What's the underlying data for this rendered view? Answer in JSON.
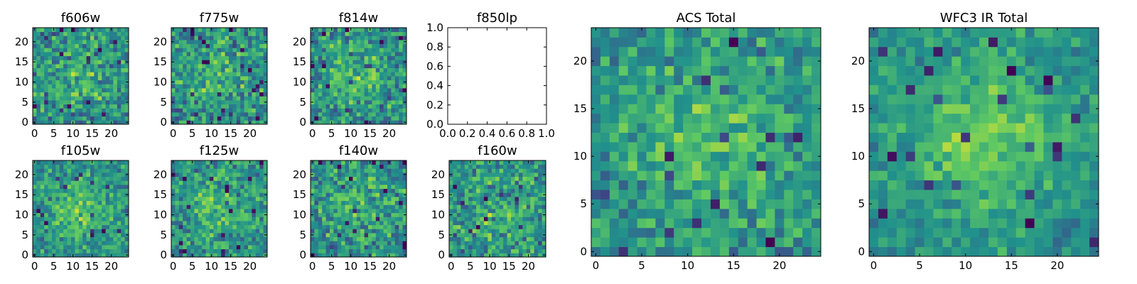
{
  "colormap": [
    "#440154",
    "#3b528b",
    "#21918c",
    "#5ec962",
    "#fde725"
  ],
  "chart_data": [
    {
      "type": "heatmap",
      "title": "f606w",
      "grid": [
        25,
        24
      ],
      "seed": 11,
      "blob": 0.45,
      "noise": 1.0,
      "xticks": [
        "0",
        "5",
        "10",
        "15",
        "20"
      ],
      "yticks": [
        "0",
        "5",
        "10",
        "15",
        "20"
      ]
    },
    {
      "type": "heatmap",
      "title": "f775w",
      "grid": [
        25,
        24
      ],
      "seed": 22,
      "blob": 0.5,
      "noise": 1.0,
      "xticks": [
        "0",
        "5",
        "10",
        "15",
        "20"
      ],
      "yticks": [
        "0",
        "5",
        "10",
        "15",
        "20"
      ]
    },
    {
      "type": "heatmap",
      "title": "f814w",
      "grid": [
        25,
        24
      ],
      "seed": 33,
      "blob": 0.55,
      "noise": 1.0,
      "xticks": [
        "0",
        "5",
        "10",
        "15",
        "20"
      ],
      "yticks": [
        "0",
        "5",
        "10",
        "15",
        "20"
      ]
    },
    {
      "type": "empty",
      "title": "f850lp",
      "xlim": [
        0,
        1
      ],
      "ylim": [
        0,
        1
      ],
      "xticks": [
        "0.0",
        "0.2",
        "0.4",
        "0.6",
        "0.8",
        "1.0"
      ],
      "yticks": [
        "0.0",
        "0.2",
        "0.4",
        "0.6",
        "0.8",
        "1.0"
      ]
    },
    {
      "type": "heatmap",
      "title": "f105w",
      "grid": [
        25,
        24
      ],
      "seed": 44,
      "blob": 0.7,
      "noise": 0.8,
      "xticks": [
        "0",
        "5",
        "10",
        "15",
        "20"
      ],
      "yticks": [
        "0",
        "5",
        "10",
        "15",
        "20"
      ]
    },
    {
      "type": "heatmap",
      "title": "f125w",
      "grid": [
        25,
        24
      ],
      "seed": 55,
      "blob": 0.55,
      "noise": 0.9,
      "xticks": [
        "0",
        "5",
        "10",
        "15",
        "20"
      ],
      "yticks": [
        "0",
        "5",
        "10",
        "15",
        "20"
      ]
    },
    {
      "type": "heatmap",
      "title": "f140w",
      "grid": [
        25,
        24
      ],
      "seed": 66,
      "blob": 0.5,
      "noise": 1.0,
      "xticks": [
        "0",
        "5",
        "10",
        "15",
        "20"
      ],
      "yticks": [
        "0",
        "5",
        "10",
        "15",
        "20"
      ]
    },
    {
      "type": "heatmap",
      "title": "f160w",
      "grid": [
        25,
        24
      ],
      "seed": 77,
      "blob": 0.45,
      "noise": 1.0,
      "xticks": [
        "0",
        "5",
        "10",
        "15",
        "20"
      ],
      "yticks": [
        "0",
        "5",
        "10",
        "15",
        "20"
      ]
    },
    {
      "type": "heatmap",
      "title": "ACS Total",
      "grid": [
        25,
        24
      ],
      "seed": 88,
      "blob": 0.65,
      "noise": 0.8,
      "xticks": [
        "0",
        "5",
        "10",
        "15",
        "20"
      ],
      "yticks": [
        "0",
        "5",
        "10",
        "15",
        "20"
      ]
    },
    {
      "type": "heatmap",
      "title": "WFC3 IR Total",
      "grid": [
        25,
        24
      ],
      "seed": 99,
      "blob": 0.9,
      "noise": 0.6,
      "xticks": [
        "0",
        "5",
        "10",
        "15",
        "20"
      ],
      "yticks": [
        "0",
        "5",
        "10",
        "15",
        "20"
      ]
    }
  ]
}
